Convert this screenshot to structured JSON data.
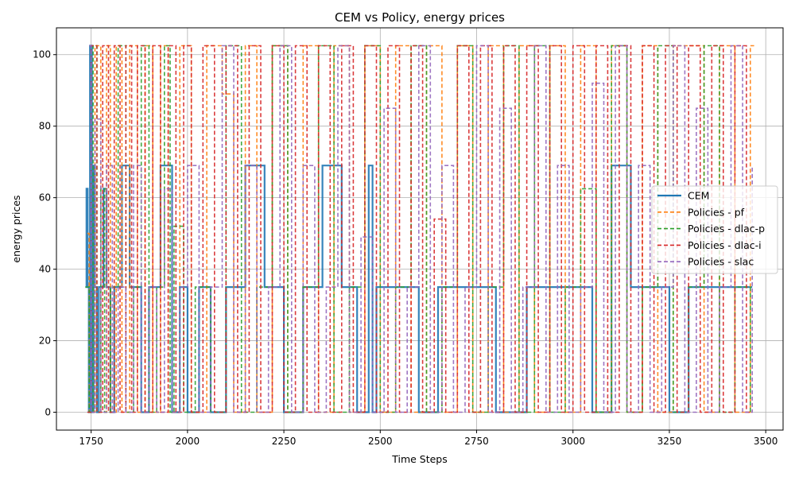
{
  "chart_data": {
    "type": "line",
    "title": "CEM vs Policy, energy prices",
    "xlabel": "Time Steps",
    "ylabel": "energy prices",
    "xlim": [
      1660,
      3545
    ],
    "ylim": [
      -5,
      107.5
    ],
    "xticks": [
      1750,
      2000,
      2250,
      2500,
      2750,
      3000,
      3250,
      3500
    ],
    "yticks": [
      0,
      20,
      40,
      60,
      80,
      100
    ],
    "grid": true,
    "legend_position": "center-right",
    "colors": {
      "CEM": "#1f77b4",
      "Policies - pf": "#ff7f0e",
      "Policies - dlac-p": "#2ca02c",
      "Policies - dlac-i": "#d62728",
      "Policies - slac": "#9467bd"
    },
    "series": [
      {
        "name": "CEM",
        "style": "solid",
        "x": [
          1735,
          1738,
          1741,
          1744,
          1747,
          1752,
          1756,
          1760,
          1765,
          1770,
          1782,
          1790,
          1800,
          1810,
          1830,
          1850,
          1880,
          1900,
          1930,
          1960,
          1980,
          2000,
          2030,
          2060,
          2100,
          2150,
          2200,
          2250,
          2300,
          2350,
          2400,
          2440,
          2470,
          2480,
          2490,
          2500,
          2550,
          2600,
          2650,
          2700,
          2750,
          2800,
          2850,
          2880,
          2920,
          2950,
          3000,
          3050,
          3100,
          3150,
          3200,
          3250,
          3300,
          3350,
          3400,
          3450,
          3465
        ],
        "y": [
          35,
          62.5,
          35,
          0,
          102.5,
          0,
          69,
          35,
          0,
          35,
          62.5,
          35,
          0,
          35,
          69,
          35,
          0,
          35,
          69,
          0,
          35,
          0,
          35,
          0,
          35,
          69,
          35,
          0,
          35,
          69,
          35,
          0,
          69,
          0,
          35,
          35,
          35,
          0,
          35,
          35,
          35,
          0,
          0,
          35,
          35,
          35,
          35,
          0,
          69,
          35,
          35,
          0,
          35,
          35,
          35,
          35,
          35
        ]
      },
      {
        "name": "Policies - pf",
        "style": "dashed",
        "x": [
          1740,
          1745,
          1760,
          1775,
          1790,
          1800,
          1815,
          1830,
          1850,
          1870,
          1890,
          1910,
          1930,
          1950,
          1980,
          2010,
          2050,
          2090,
          2120,
          2150,
          2180,
          2220,
          2260,
          2300,
          2340,
          2380,
          2420,
          2460,
          2500,
          2540,
          2580,
          2620,
          2660,
          2700,
          2740,
          2780,
          2820,
          2860,
          2900,
          2940,
          2980,
          3020,
          3060,
          3100,
          3140,
          3180,
          3220,
          3260,
          3300,
          3340,
          3380,
          3420,
          3460,
          3470
        ],
        "y": [
          50,
          0,
          102.5,
          0,
          102.5,
          0,
          102.5,
          0,
          102.5,
          0,
          102.5,
          0,
          102.5,
          0,
          102.5,
          0,
          102.5,
          89,
          0,
          102.5,
          0,
          102.5,
          0,
          102.5,
          0,
          102.5,
          0,
          102.5,
          0,
          102.5,
          0,
          102.5,
          0,
          102.5,
          0,
          102.5,
          0,
          102.5,
          0,
          102.5,
          0,
          102.5,
          0,
          102.5,
          0,
          102.5,
          0,
          102.5,
          102.5,
          0,
          102.5,
          0,
          102.5,
          102.5
        ]
      },
      {
        "name": "Policies - dlac-p",
        "style": "dashed",
        "x": [
          1735,
          1745,
          1755,
          1765,
          1775,
          1785,
          1800,
          1820,
          1840,
          1860,
          1880,
          1900,
          1920,
          1940,
          1955,
          1965,
          1990,
          2020,
          2060,
          2100,
          2140,
          2180,
          2220,
          2260,
          2300,
          2340,
          2380,
          2420,
          2460,
          2500,
          2540,
          2580,
          2620,
          2660,
          2700,
          2740,
          2780,
          2820,
          2860,
          2900,
          2940,
          2980,
          3020,
          3060,
          3100,
          3140,
          3180,
          3220,
          3260,
          3300,
          3340,
          3380,
          3420,
          3460
        ],
        "y": [
          35,
          0,
          102.5,
          0,
          62.5,
          0,
          35,
          102.5,
          0,
          35,
          102.5,
          0,
          35,
          102.5,
          0,
          52,
          0,
          35,
          0,
          102.5,
          0,
          35,
          102.5,
          0,
          35,
          102.5,
          0,
          35,
          102.5,
          0,
          35,
          102.5,
          0,
          35,
          102.5,
          0,
          35,
          102.5,
          0,
          102.5,
          0,
          35,
          62.5,
          0,
          102.5,
          0,
          35,
          102.5,
          0,
          35,
          102.5,
          0,
          35,
          0
        ]
      },
      {
        "name": "Policies - dlac-i",
        "style": "dashed",
        "x": [
          1740,
          1750,
          1765,
          1780,
          1795,
          1810,
          1825,
          1840,
          1855,
          1870,
          1890,
          1910,
          1930,
          1950,
          1970,
          1990,
          2010,
          2040,
          2070,
          2100,
          2130,
          2160,
          2190,
          2220,
          2250,
          2280,
          2310,
          2340,
          2370,
          2400,
          2430,
          2460,
          2490,
          2520,
          2550,
          2580,
          2610,
          2640,
          2670,
          2700,
          2730,
          2760,
          2790,
          2820,
          2850,
          2880,
          2910,
          2940,
          2970,
          3000,
          3030,
          3060,
          3090,
          3120,
          3150,
          3180,
          3210,
          3240,
          3270,
          3300,
          3330,
          3360,
          3390,
          3420,
          3450,
          3460
        ],
        "y": [
          0,
          102.5,
          0,
          102.5,
          0,
          102.5,
          0,
          102.5,
          0,
          102.5,
          0,
          102.5,
          0,
          102.5,
          0,
          102.5,
          0,
          102.5,
          0,
          102.5,
          0,
          102.5,
          0,
          102.5,
          0,
          102.5,
          0,
          102.5,
          0,
          102.5,
          0,
          102.5,
          0,
          102.5,
          0,
          102.5,
          0,
          54,
          0,
          102.5,
          0,
          102.5,
          0,
          102.5,
          0,
          102.5,
          0,
          102.5,
          0,
          102.5,
          0,
          102.5,
          0,
          102.5,
          0,
          102.5,
          0,
          102.5,
          0,
          102.5,
          0,
          102.5,
          0,
          102.5,
          0,
          0
        ]
      },
      {
        "name": "Policies - slac",
        "style": "dashed",
        "x": [
          1745,
          1750,
          1760,
          1775,
          1790,
          1805,
          1820,
          1840,
          1860,
          1880,
          1900,
          1920,
          1940,
          1960,
          1980,
          2000,
          2030,
          2060,
          2090,
          2120,
          2150,
          2180,
          2210,
          2240,
          2270,
          2300,
          2330,
          2360,
          2390,
          2420,
          2450,
          2480,
          2510,
          2540,
          2570,
          2600,
          2630,
          2660,
          2690,
          2720,
          2750,
          2780,
          2810,
          2840,
          2870,
          2900,
          2930,
          2960,
          2990,
          3020,
          3050,
          3080,
          3110,
          3140,
          3170,
          3200,
          3230,
          3260,
          3290,
          3320,
          3350,
          3380,
          3410,
          3440,
          3465
        ],
        "y": [
          102.5,
          0,
          82,
          0,
          69,
          0,
          35,
          0,
          69,
          0,
          35,
          0,
          62.5,
          0,
          35,
          69,
          0,
          35,
          102.5,
          0,
          69,
          0,
          35,
          102.5,
          0,
          69,
          0,
          35,
          102.5,
          0,
          49,
          0,
          85,
          0,
          35,
          102.5,
          0,
          69,
          0,
          35,
          102.5,
          0,
          85,
          0,
          35,
          102.5,
          0,
          69,
          0,
          35,
          92,
          0,
          102.5,
          0,
          69,
          0,
          35,
          102.5,
          0,
          85,
          0,
          35,
          102.5,
          0,
          69
        ]
      }
    ]
  }
}
